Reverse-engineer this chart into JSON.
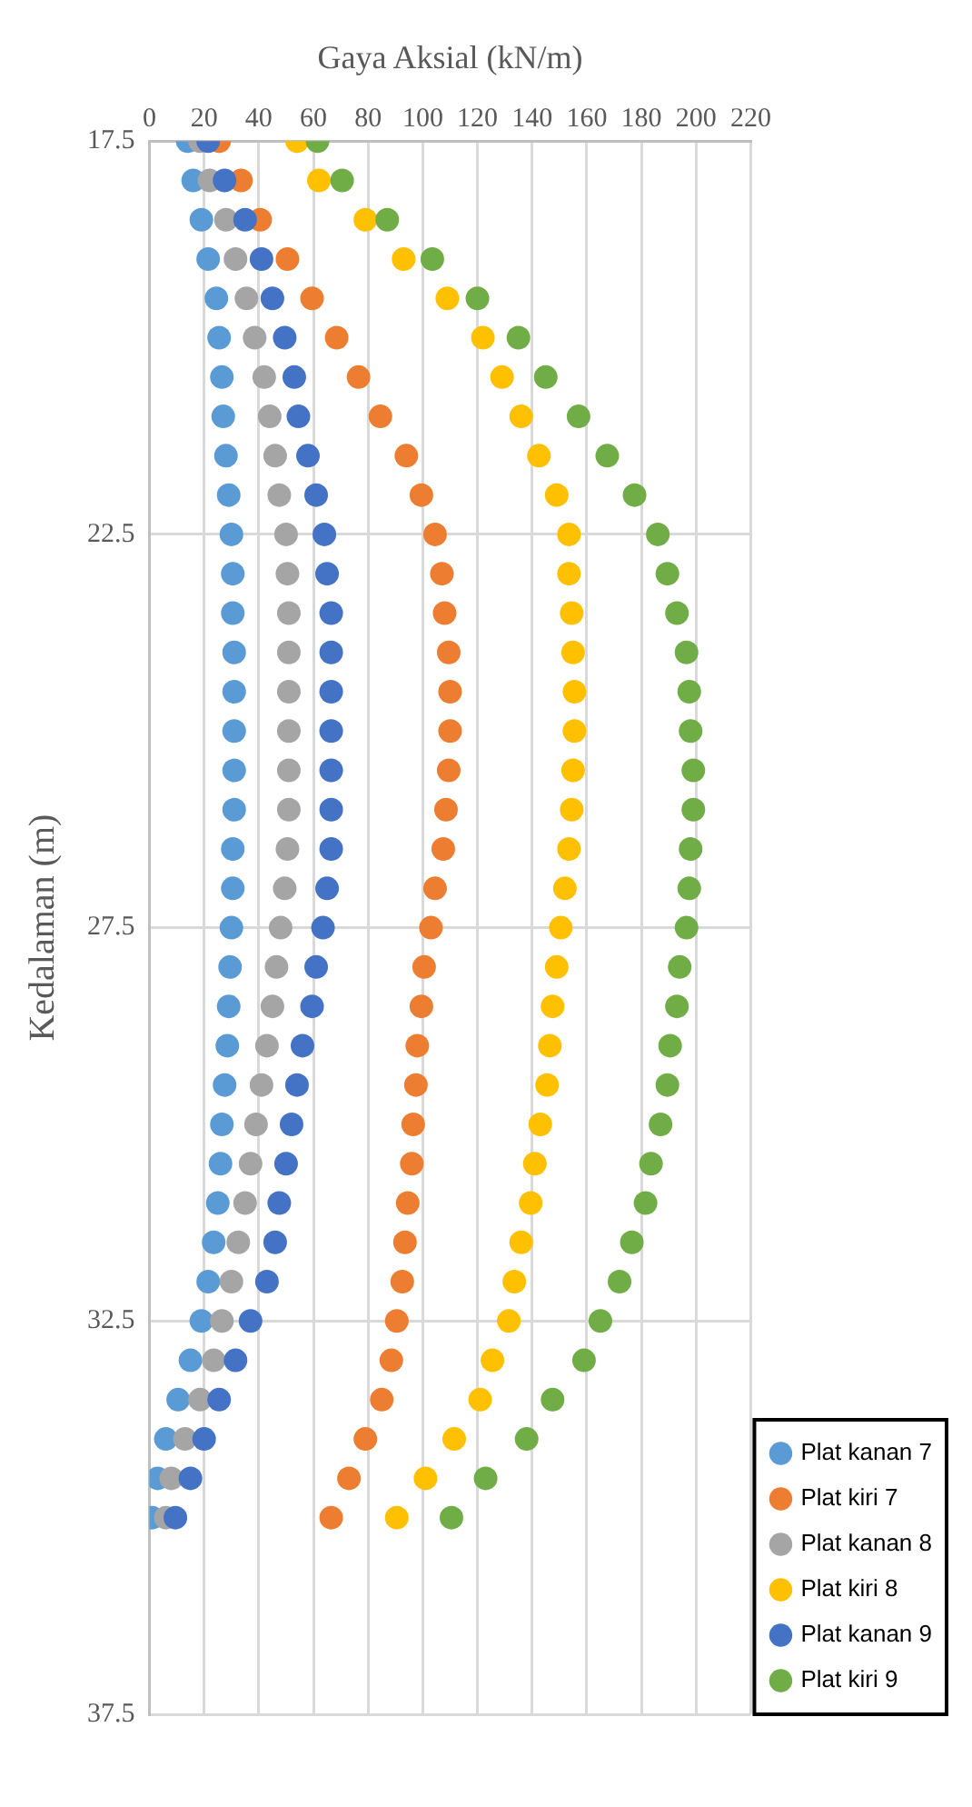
{
  "chart_data": {
    "type": "scatter",
    "xlabel": "Gaya Aksial (kN/m)",
    "ylabel": "Kedalaman (m)",
    "xlim": [
      0,
      220
    ],
    "xticks": [
      0,
      20,
      40,
      60,
      80,
      100,
      120,
      140,
      160,
      180,
      200,
      220
    ],
    "ylim": [
      37.5,
      17.5
    ],
    "yticks": [
      17.5,
      22.5,
      27.5,
      32.5,
      37.5
    ],
    "grid": true,
    "legend": "bottom right",
    "marker": "circle",
    "series": [
      {
        "name": "Plat kanan 7",
        "color": "#5b9bd5",
        "x": [
          14,
          16,
          19,
          21.5,
          24.5,
          25.5,
          26.5,
          27,
          28,
          29,
          30,
          30.5,
          30.5,
          31,
          31,
          31,
          31,
          31,
          30.5,
          30.5,
          30,
          29.5,
          29,
          28.5,
          27.5,
          26.5,
          26,
          25,
          23.5,
          21.5,
          19,
          15,
          10.5,
          6,
          3,
          1
        ],
        "values": [
          17.5,
          18,
          18.5,
          19,
          19.5,
          20,
          20.5,
          21,
          21.5,
          22,
          22.5,
          23,
          23.5,
          24,
          24.5,
          25,
          25.5,
          26,
          26.5,
          27,
          27.5,
          28,
          28.5,
          29,
          29.5,
          30,
          30.5,
          31,
          31.5,
          32,
          32.5,
          33,
          33.5,
          34,
          34.5,
          35
        ]
      },
      {
        "name": "Plat kiri 7",
        "color": "#ed7d31",
        "x": [
          25.5,
          33.5,
          40.5,
          50.5,
          59.5,
          68.5,
          76.5,
          84.5,
          94,
          99.5,
          104.5,
          107,
          108,
          109.5,
          110,
          110,
          109.5,
          108.5,
          107.5,
          104.5,
          103,
          100.5,
          99.5,
          98,
          97.5,
          96.5,
          96,
          94.5,
          93.5,
          92.5,
          90.5,
          88.5,
          85,
          79,
          73,
          66.5
        ],
        "values": [
          17.5,
          18,
          18.5,
          19,
          19.5,
          20,
          20.5,
          21,
          21.5,
          22,
          22.5,
          23,
          23.5,
          24,
          24.5,
          25,
          25.5,
          26,
          26.5,
          27,
          27.5,
          28,
          28.5,
          29,
          29.5,
          30,
          30.5,
          31,
          31.5,
          32,
          32.5,
          33,
          33.5,
          34,
          34.5,
          35
        ]
      },
      {
        "name": "Plat kanan 8",
        "color": "#a5a5a5",
        "x": [
          18.5,
          22,
          28,
          31.5,
          35.5,
          38.5,
          42,
          44,
          46,
          47.5,
          50,
          50.5,
          51,
          51,
          51,
          51,
          51,
          51,
          50.5,
          49.5,
          48,
          46.5,
          45,
          43,
          41,
          39,
          37,
          35,
          32.5,
          30,
          26.5,
          23.5,
          18.5,
          13,
          8,
          6
        ],
        "values": [
          17.5,
          18,
          18.5,
          19,
          19.5,
          20,
          20.5,
          21,
          21.5,
          22,
          22.5,
          23,
          23.5,
          24,
          24.5,
          25,
          25.5,
          26,
          26.5,
          27,
          27.5,
          28,
          28.5,
          29,
          29.5,
          30,
          30.5,
          31,
          31.5,
          32,
          32.5,
          33,
          33.5,
          34,
          34.5,
          35
        ]
      },
      {
        "name": "Plat kiri 8",
        "color": "#ffc000",
        "x": [
          54,
          62,
          79,
          93,
          109,
          122,
          129,
          136,
          142.5,
          149,
          153.5,
          153.5,
          154.5,
          155,
          155.5,
          155.5,
          155,
          154.5,
          153.5,
          152,
          150.5,
          149,
          147.5,
          146.5,
          145.5,
          143,
          141,
          139.5,
          136,
          133.5,
          131.5,
          125.5,
          121,
          111.5,
          101,
          90.5
        ],
        "values": [
          17.5,
          18,
          18.5,
          19,
          19.5,
          20,
          20.5,
          21,
          21.5,
          22,
          22.5,
          23,
          23.5,
          24,
          24.5,
          25,
          25.5,
          26,
          26.5,
          27,
          27.5,
          28,
          28.5,
          29,
          29.5,
          30,
          30.5,
          31,
          31.5,
          32,
          32.5,
          33,
          33.5,
          34,
          34.5,
          35
        ]
      },
      {
        "name": "Plat kanan 9",
        "color": "#4472c4",
        "x": [
          21.5,
          27.5,
          35,
          41,
          45,
          49.5,
          53,
          54.5,
          58,
          61,
          64,
          65,
          66.5,
          66.5,
          66.5,
          66.5,
          66.5,
          66.5,
          66.5,
          65,
          63.5,
          61,
          59.5,
          56,
          54,
          52,
          50,
          47.5,
          46,
          43,
          37,
          31.5,
          25.5,
          20,
          15,
          9.5
        ],
        "values": [
          17.5,
          18,
          18.5,
          19,
          19.5,
          20,
          20.5,
          21,
          21.5,
          22,
          22.5,
          23,
          23.5,
          24,
          24.5,
          25,
          25.5,
          26,
          26.5,
          27,
          27.5,
          28,
          28.5,
          29,
          29.5,
          30,
          30.5,
          31,
          31.5,
          32,
          32.5,
          33,
          33.5,
          34,
          34.5,
          35
        ]
      },
      {
        "name": "Plat kiri 9",
        "color": "#70ad47",
        "x": [
          61.5,
          70.5,
          87,
          103.5,
          120,
          135,
          145,
          157,
          167.5,
          177.5,
          186,
          189.5,
          193,
          196.5,
          197.5,
          198,
          199,
          199,
          198,
          197.5,
          196.5,
          194,
          193,
          190.5,
          189.5,
          187,
          183.5,
          181.5,
          176.5,
          172,
          165,
          159,
          147.5,
          138,
          123,
          110.5
        ],
        "values": [
          17.5,
          18,
          18.5,
          19,
          19.5,
          20,
          20.5,
          21,
          21.5,
          22,
          22.5,
          23,
          23.5,
          24,
          24.5,
          25,
          25.5,
          26,
          26.5,
          27,
          27.5,
          28,
          28.5,
          29,
          29.5,
          30,
          30.5,
          31,
          31.5,
          32,
          32.5,
          33,
          33.5,
          34,
          34.5,
          35
        ]
      }
    ]
  }
}
